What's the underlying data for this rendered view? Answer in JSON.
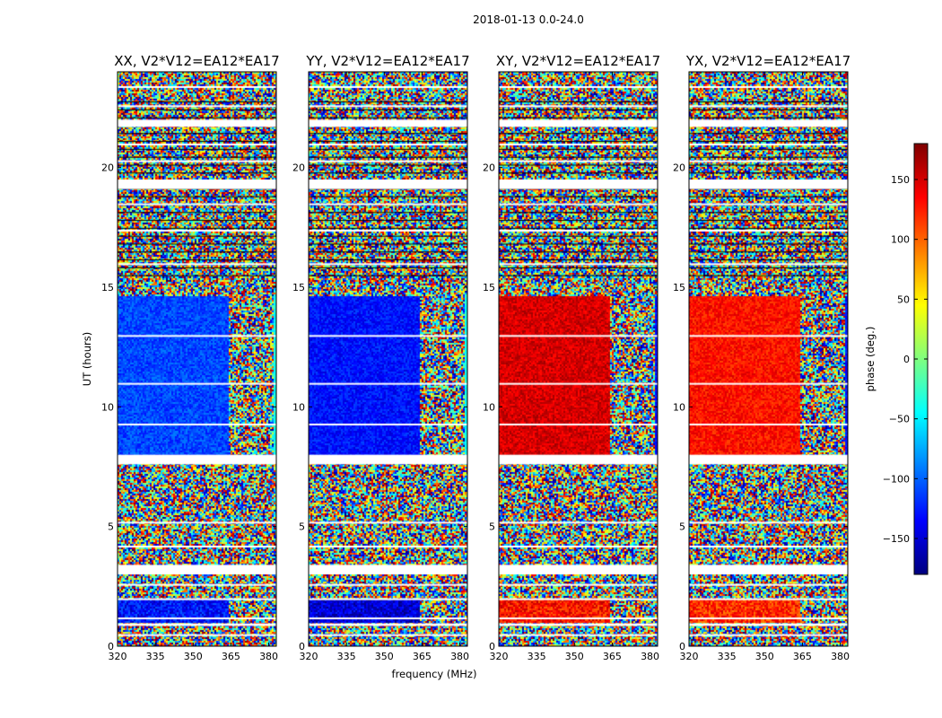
{
  "figure": {
    "suptitle": "2018-01-13 0.0-24.0",
    "xlabel": "frequency (MHz)",
    "ylabel": "UT (hours)"
  },
  "chart_data": {
    "type": "heatmap",
    "x": {
      "min": 320,
      "max": 383,
      "ticks": [
        320,
        335,
        350,
        365,
        380
      ],
      "tick_labels": [
        "320",
        "335",
        "350",
        "365",
        "380"
      ]
    },
    "y": {
      "min": 0,
      "max": 24,
      "ticks": [
        0,
        5,
        10,
        15,
        20
      ],
      "tick_labels": [
        "0",
        "5",
        "10",
        "15",
        "20"
      ]
    },
    "colorbar": {
      "label": "phase (deg.)",
      "min": -180,
      "max": 180,
      "ticks": [
        -150,
        -100,
        -50,
        0,
        50,
        100,
        150
      ],
      "tick_labels": [
        "−150",
        "−100",
        "−50",
        "0",
        "50",
        "100",
        "150"
      ],
      "colormap": "jet",
      "colors": [
        "#00007f",
        "#0000ff",
        "#007fff",
        "#00ffff",
        "#7fff7f",
        "#ffff00",
        "#ff7f00",
        "#ff0000",
        "#7f0000"
      ]
    },
    "flagged_color": "#ffffff",
    "panels": [
      {
        "title": "XX, V2*V12=EA12*EA17",
        "coherent_phase_8_15h": -110,
        "coherent_phase_1_3h": -130
      },
      {
        "title": "YY, V2*V12=EA12*EA17",
        "coherent_phase_8_15h": -130,
        "coherent_phase_1_3h": -150
      },
      {
        "title": "XY, V2*V12=EA12*EA17",
        "coherent_phase_8_15h": 150,
        "coherent_phase_1_3h": 130
      },
      {
        "title": "YX, V2*V12=EA12*EA17",
        "coherent_phase_8_15h": 130,
        "coherent_phase_1_3h": 120
      }
    ]
  }
}
